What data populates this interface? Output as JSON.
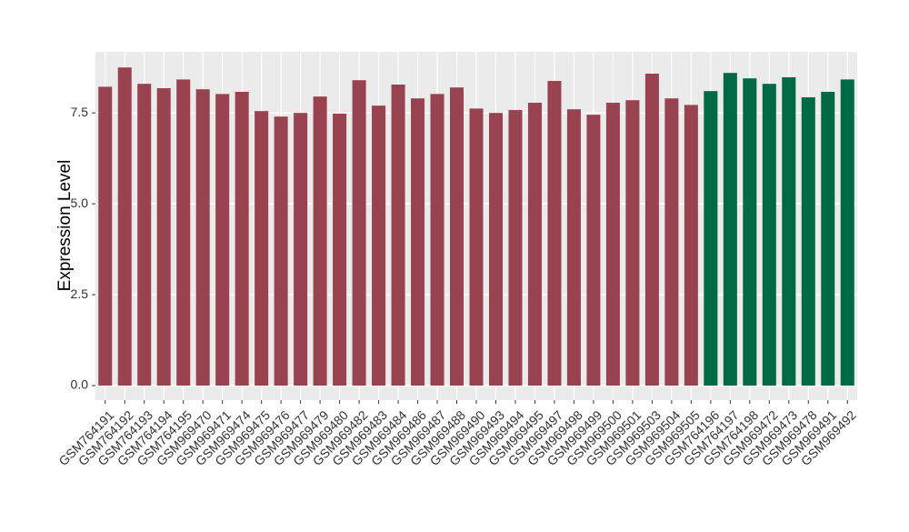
{
  "chart_data": {
    "type": "bar",
    "ylabel": "Expression Level",
    "categories": [
      "GSM764191",
      "GSM764192",
      "GSM764193",
      "GSM764194",
      "GSM764195",
      "GSM969470",
      "GSM969471",
      "GSM969474",
      "GSM969475",
      "GSM969476",
      "GSM969477",
      "GSM969479",
      "GSM969480",
      "GSM969482",
      "GSM969483",
      "GSM969484",
      "GSM969486",
      "GSM969487",
      "GSM969488",
      "GSM969490",
      "GSM969493",
      "GSM969494",
      "GSM969495",
      "GSM969497",
      "GSM969498",
      "GSM969499",
      "GSM969500",
      "GSM969501",
      "GSM969503",
      "GSM969504",
      "GSM969505",
      "GSM764196",
      "GSM764197",
      "GSM764198",
      "GSM969472",
      "GSM969473",
      "GSM969478",
      "GSM969491",
      "GSM969492"
    ],
    "values": [
      8.22,
      8.75,
      8.3,
      8.18,
      8.42,
      8.15,
      8.02,
      8.08,
      7.55,
      7.4,
      7.5,
      7.95,
      7.48,
      8.4,
      7.7,
      8.28,
      7.9,
      8.02,
      8.2,
      7.62,
      7.5,
      7.58,
      7.78,
      8.38,
      7.6,
      7.45,
      7.78,
      7.85,
      8.58,
      7.9,
      7.72,
      8.1,
      8.6,
      8.45,
      8.3,
      8.48,
      7.93,
      8.08,
      8.42
    ],
    "colors": [
      "#9a4350",
      "#9a4350",
      "#9a4350",
      "#9a4350",
      "#9a4350",
      "#9a4350",
      "#9a4350",
      "#9a4350",
      "#9a4350",
      "#9a4350",
      "#9a4350",
      "#9a4350",
      "#9a4350",
      "#9a4350",
      "#9a4350",
      "#9a4350",
      "#9a4350",
      "#9a4350",
      "#9a4350",
      "#9a4350",
      "#9a4350",
      "#9a4350",
      "#9a4350",
      "#9a4350",
      "#9a4350",
      "#9a4350",
      "#9a4350",
      "#9a4350",
      "#9a4350",
      "#9a4350",
      "#9a4350",
      "#006a45",
      "#006a45",
      "#006a45",
      "#006a45",
      "#006a45",
      "#006a45",
      "#006a45",
      "#006a45"
    ],
    "ylim": [
      -0.4,
      9.18
    ],
    "yticks": [
      {
        "value": 0,
        "label": "0.0"
      },
      2.5,
      {
        "value": 5,
        "label": "5.0"
      },
      7.5
    ],
    "grid": true
  }
}
